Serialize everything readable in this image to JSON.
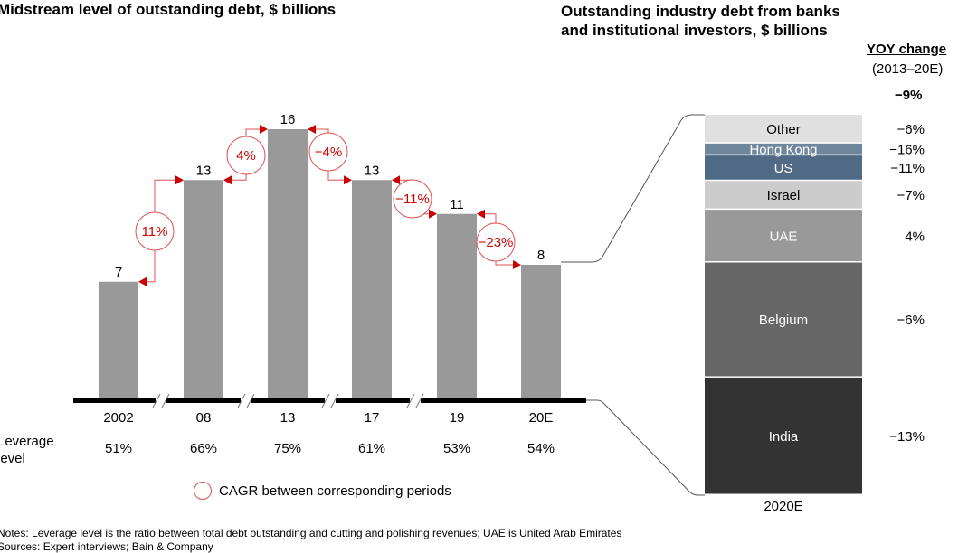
{
  "left_title": "Midstream level of outstanding debt, $ billions",
  "right_title_line1": "Outstanding industry debt from banks",
  "right_title_line2": "and institutional investors, $ billions",
  "yoy_header": "YOY change",
  "yoy_period": "(2013–20E)",
  "yoy_total": "−9%",
  "leverage_label_line1": "Leverage",
  "leverage_label_line2": "level",
  "legend_label": "CAGR between corresponding periods",
  "notes": "Notes: Leverage level is the ratio between total debt outstanding and cutting and polishing revenues; UAE is United Arab Emirates",
  "sources": "Sources: Expert interviews; Bain & Company",
  "colors": {
    "bar": "#999999",
    "cagr": "#cc0000",
    "axis": "#000000"
  },
  "chart_data": [
    {
      "type": "bar",
      "title": "Midstream level of outstanding debt, $ billions",
      "categories": [
        "2002",
        "08",
        "13",
        "17",
        "19",
        "20E"
      ],
      "values": [
        7,
        13,
        16,
        13,
        11,
        8
      ],
      "data_labels": [
        "7",
        "13",
        "16",
        "13",
        "11",
        "8"
      ],
      "leverage": [
        "51%",
        "66%",
        "75%",
        "61%",
        "53%",
        "54%"
      ],
      "cagr": [
        "11%",
        "4%",
        "−4%",
        "−11%",
        "−23%"
      ],
      "axis_breaks": true,
      "ylim": [
        0,
        16
      ]
    },
    {
      "type": "bar",
      "stacked": true,
      "title": "Outstanding industry debt from banks and institutional investors, $ billions",
      "categories": [
        "2020E"
      ],
      "segments": [
        {
          "name": "India",
          "value": 2.45,
          "yoy": "−13%",
          "color": "#333333",
          "text": "#ffffff"
        },
        {
          "name": "Belgium",
          "value": 2.4,
          "yoy": "−6%",
          "color": "#666666",
          "text": "#ffffff"
        },
        {
          "name": "UAE",
          "value": 1.1,
          "yoy": "4%",
          "color": "#999999",
          "text": "#ffffff"
        },
        {
          "name": "Israel",
          "value": 0.6,
          "yoy": "−7%",
          "color": "#cccccc",
          "text": "#000000"
        },
        {
          "name": "US",
          "value": 0.53,
          "yoy": "−11%",
          "color": "#506a85",
          "text": "#ffffff"
        },
        {
          "name": "Hong Kong",
          "value": 0.25,
          "yoy": "−16%",
          "color": "#6f879c",
          "text": "#ffffff"
        },
        {
          "name": "Other",
          "value": 0.6,
          "yoy": "−6%",
          "color": "#e0e0e0",
          "text": "#000000"
        }
      ]
    }
  ]
}
